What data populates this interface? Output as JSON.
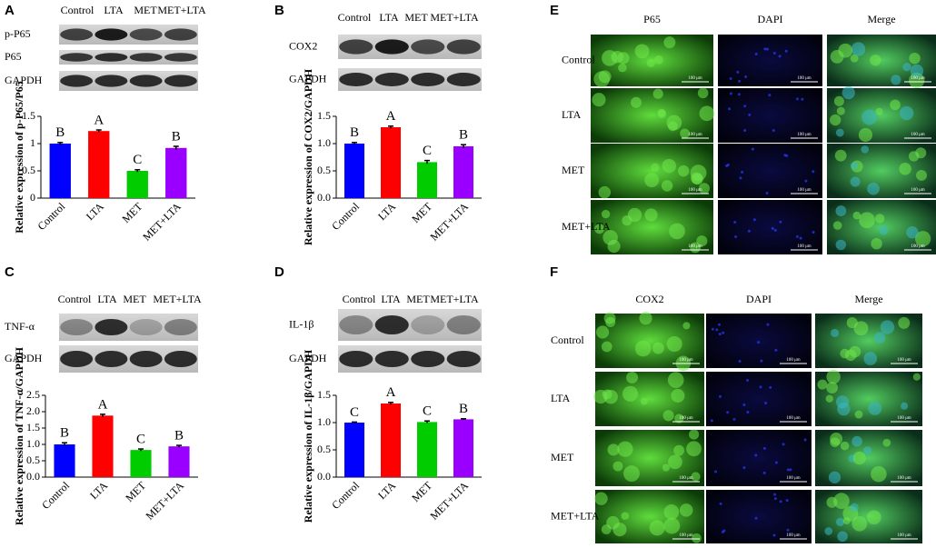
{
  "panel_labels": [
    "A",
    "B",
    "C",
    "D",
    "E",
    "F"
  ],
  "blots": [
    {
      "lanes": [
        "Control",
        "LTA",
        "MET",
        "MET+LTA"
      ],
      "rows": [
        "p-P65",
        "P65",
        "GAPDH"
      ]
    },
    {
      "lanes": [
        "Control",
        "LTA",
        "MET",
        "MET+LTA"
      ],
      "rows": [
        "COX2",
        "GAPDH"
      ]
    },
    {
      "lanes": [
        "Control",
        "LTA",
        "MET",
        "MET+LTA"
      ],
      "rows": [
        "TNF-α",
        "GAPDH"
      ]
    },
    {
      "lanes": [
        "Control",
        "LTA",
        "MET",
        "MET+LTA"
      ],
      "rows": [
        "IL-1β",
        "GAPDH"
      ]
    }
  ],
  "chart_data": [
    {
      "type": "bar",
      "ylabel": "Relative expression of p-P65/P65",
      "categories": [
        "Control",
        "LTA",
        "MET",
        "MET+LTA"
      ],
      "values": [
        1.0,
        1.23,
        0.5,
        0.92
      ],
      "errors": [
        0.02,
        0.02,
        0.02,
        0.03
      ],
      "annotations": [
        "B",
        "A",
        "C",
        "B"
      ],
      "colors": [
        "#0000ff",
        "#ff0000",
        "#00cc00",
        "#9900ff"
      ],
      "ylim": [
        0,
        1.5
      ],
      "yticks": [
        0,
        0.5,
        1,
        1.5
      ]
    },
    {
      "type": "bar",
      "ylabel": "Relative expression of COX2/GAPDH",
      "categories": [
        "Control",
        "LTA",
        "MET",
        "MET+LTA"
      ],
      "values": [
        1.0,
        1.3,
        0.66,
        0.95
      ],
      "errors": [
        0.02,
        0.02,
        0.03,
        0.03
      ],
      "annotations": [
        "B",
        "A",
        "C",
        "B"
      ],
      "colors": [
        "#0000ff",
        "#ff0000",
        "#00cc00",
        "#9900ff"
      ],
      "ylim": [
        0,
        1.5
      ],
      "yticks": [
        {
          "value": 0,
          "label": "0.0"
        },
        0.5,
        {
          "value": 1,
          "label": "1.0"
        },
        1.5
      ]
    },
    {
      "type": "bar",
      "ylabel": "Relative expression of TNF-α/GAPDH",
      "categories": [
        "Control",
        "LTA",
        "MET",
        "MET+LTA"
      ],
      "values": [
        1.0,
        1.88,
        0.83,
        0.94
      ],
      "errors": [
        0.05,
        0.04,
        0.03,
        0.03
      ],
      "annotations": [
        "B",
        "A",
        "C",
        "B"
      ],
      "colors": [
        "#0000ff",
        "#ff0000",
        "#00cc00",
        "#9900ff"
      ],
      "ylim": [
        0,
        2.5
      ],
      "yticks": [
        {
          "value": 0,
          "label": "0.0"
        },
        0.5,
        {
          "value": 1,
          "label": "1.0"
        },
        1.5,
        {
          "value": 2,
          "label": "2.0"
        },
        2.5
      ]
    },
    {
      "type": "bar",
      "ylabel": "Relative expression of IL-1β/GAPDH",
      "categories": [
        "Control",
        "LTA",
        "MET",
        "MET+LTA"
      ],
      "values": [
        1.0,
        1.35,
        1.01,
        1.06
      ],
      "errors": [
        0.01,
        0.02,
        0.02,
        0.01
      ],
      "annotations": [
        "C",
        "A",
        "C",
        "B"
      ],
      "colors": [
        "#0000ff",
        "#ff0000",
        "#00cc00",
        "#9900ff"
      ],
      "ylim": [
        0,
        1.5
      ],
      "yticks": [
        {
          "value": 0,
          "label": "0.0"
        },
        0.5,
        {
          "value": 1,
          "label": "1.0"
        },
        1.5
      ]
    }
  ],
  "micrographs": [
    {
      "columns": [
        "P65",
        "DAPI",
        "Merge"
      ],
      "rows": [
        "Control",
        "LTA",
        "MET",
        "MET+LTA"
      ]
    },
    {
      "columns": [
        "COX2",
        "DAPI",
        "Merge"
      ],
      "rows": [
        "Control",
        "LTA",
        "MET",
        "MET+LTA"
      ]
    }
  ],
  "scale_bar": "100 μm"
}
